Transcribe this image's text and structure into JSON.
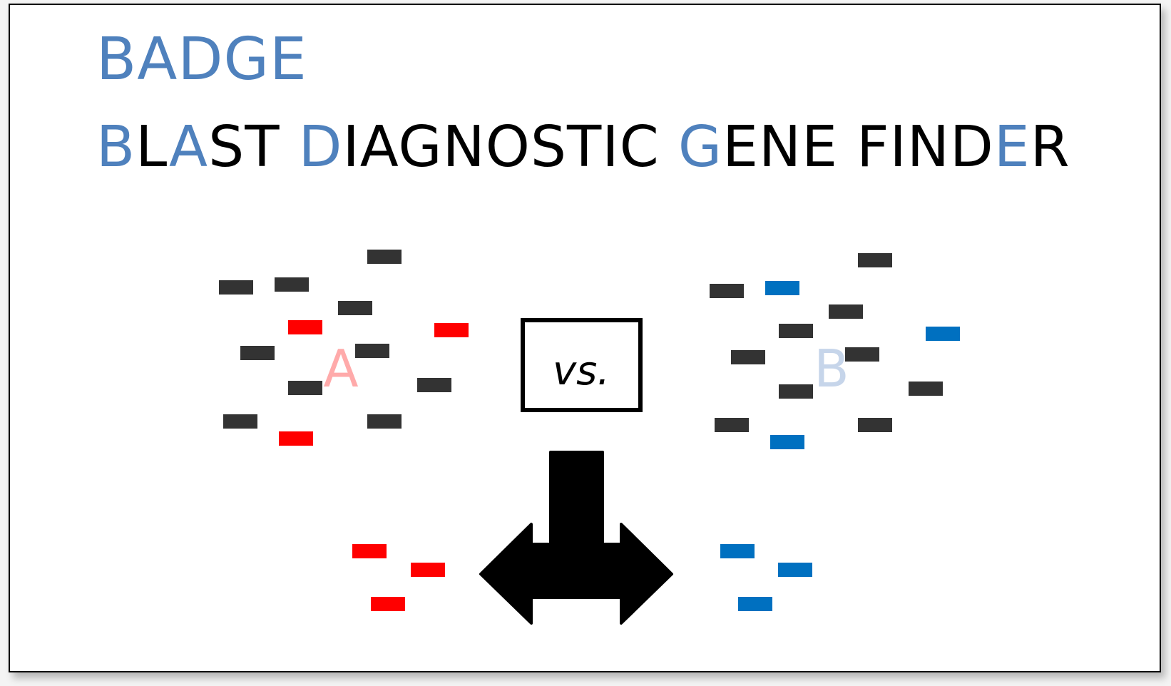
{
  "title": {
    "text": "BADGE",
    "color": "#4f81bd"
  },
  "subtitle": {
    "highlight_color": "#4f81bd",
    "plain_color": "#000000",
    "segments": [
      {
        "text": "B",
        "highlight": true
      },
      {
        "text": "L",
        "highlight": false
      },
      {
        "text": "A",
        "highlight": true
      },
      {
        "text": "ST ",
        "highlight": false
      },
      {
        "text": "D",
        "highlight": true
      },
      {
        "text": "IAGNOSTIC ",
        "highlight": false
      },
      {
        "text": "G",
        "highlight": true
      },
      {
        "text": "ENE FIND",
        "highlight": false
      },
      {
        "text": "E",
        "highlight": true
      },
      {
        "text": "R",
        "highlight": false
      }
    ]
  },
  "genome_a": {
    "label": "A",
    "label_color": "#ffaaaa",
    "gene_color": "#ff0000"
  },
  "genome_b": {
    "label": "B",
    "label_color": "#c6d5ea",
    "gene_color": "#0070c0"
  },
  "shared_gene_color": "#333333",
  "comparison": {
    "label": "vs."
  },
  "arrow_color": "#000000"
}
